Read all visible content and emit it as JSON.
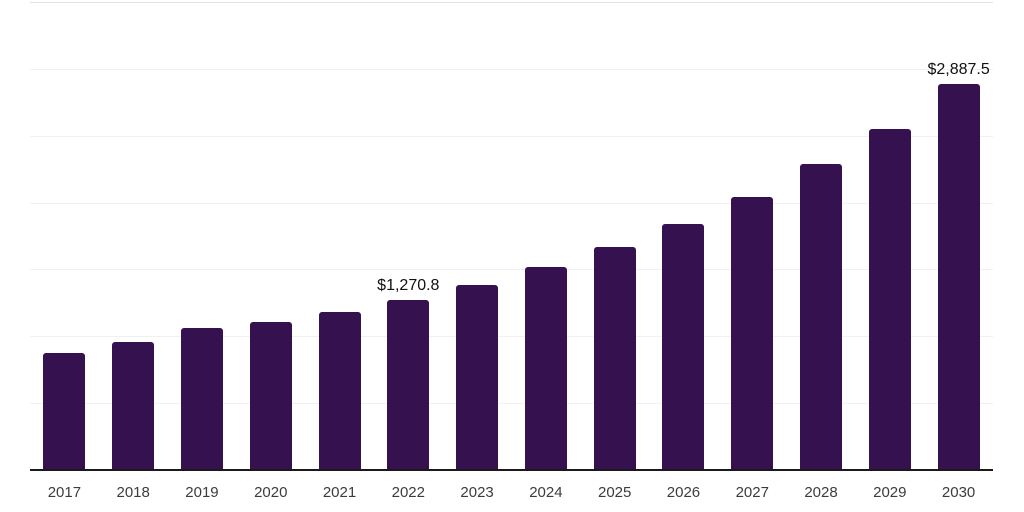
{
  "chart_data": {
    "type": "bar",
    "title": "",
    "xlabel": "",
    "ylabel": "",
    "categories": [
      "2017",
      "2018",
      "2019",
      "2020",
      "2021",
      "2022",
      "2023",
      "2024",
      "2025",
      "2026",
      "2027",
      "2028",
      "2029",
      "2030"
    ],
    "values": [
      875,
      955,
      1060,
      1110,
      1185,
      1270.8,
      1380,
      1515,
      1665,
      1840,
      2045,
      2290,
      2550,
      2887.5
    ],
    "data_labels": [
      {
        "category": "2022",
        "text": "$1,270.8"
      },
      {
        "category": "2030",
        "text": "$2,887.5"
      }
    ],
    "ylim": [
      0,
      3500
    ],
    "gridline_step": 500,
    "grid": "horizontal-only",
    "y_axis_tick_labels": "none",
    "legend": "none",
    "colors": {
      "bar": "#36114F",
      "axis_line": "#1a1a1a",
      "gridline": "#f0f0f0",
      "top_gridline": "#e3e3e3",
      "tick_label": "#3c3c3c",
      "data_label": "#111111"
    }
  }
}
